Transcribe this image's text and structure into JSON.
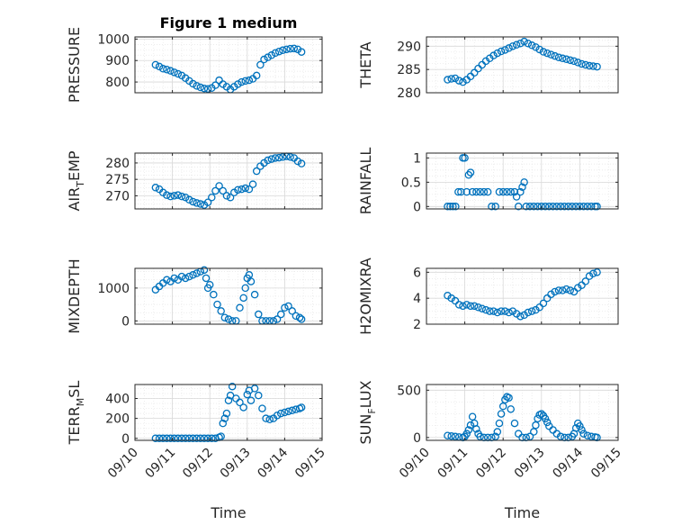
{
  "colors": {
    "marker": "#0072BD",
    "axis": "#262626",
    "grid": "#d9d9d9"
  },
  "chart_data": [
    {
      "id": "pressure",
      "type": "scatter",
      "title": "Figure 1 medium",
      "ylabel": "PRESSURE",
      "xlim": [
        0,
        5
      ],
      "ylim": [
        750,
        1010
      ],
      "yticks": [
        800,
        900,
        1000
      ],
      "ytick_labels": [
        "800",
        "900",
        "1000"
      ],
      "x": [
        0.55,
        0.65,
        0.75,
        0.85,
        0.95,
        1.05,
        1.15,
        1.25,
        1.35,
        1.45,
        1.55,
        1.65,
        1.75,
        1.85,
        1.95,
        2.05,
        2.15,
        2.25,
        2.35,
        2.45,
        2.55,
        2.65,
        2.75,
        2.85,
        2.95,
        3.05,
        3.15,
        3.25,
        3.35,
        3.45,
        3.55,
        3.65,
        3.75,
        3.85,
        3.95,
        4.05,
        4.15,
        4.25,
        4.35,
        4.45
      ],
      "y": [
        880,
        872,
        862,
        858,
        852,
        845,
        838,
        830,
        818,
        805,
        792,
        782,
        775,
        770,
        768,
        772,
        785,
        808,
        790,
        778,
        765,
        778,
        790,
        800,
        805,
        808,
        815,
        830,
        880,
        905,
        915,
        925,
        935,
        942,
        948,
        952,
        955,
        956,
        952,
        940
      ]
    },
    {
      "id": "theta",
      "type": "scatter",
      "ylabel": "THETA",
      "xlim": [
        0,
        5
      ],
      "ylim": [
        280,
        292
      ],
      "yticks": [
        280,
        285,
        290
      ],
      "ytick_labels": [
        "280",
        "285",
        "290"
      ],
      "x": [
        0.55,
        0.65,
        0.75,
        0.85,
        0.95,
        1.05,
        1.15,
        1.25,
        1.35,
        1.45,
        1.55,
        1.65,
        1.75,
        1.85,
        1.95,
        2.05,
        2.15,
        2.25,
        2.35,
        2.45,
        2.55,
        2.65,
        2.75,
        2.85,
        2.95,
        3.05,
        3.15,
        3.25,
        3.35,
        3.45,
        3.55,
        3.65,
        3.75,
        3.85,
        3.95,
        4.05,
        4.15,
        4.25,
        4.35,
        4.45
      ],
      "y": [
        282.8,
        283.0,
        283.1,
        282.6,
        282.3,
        282.8,
        283.5,
        284.3,
        285.2,
        286.0,
        286.8,
        287.4,
        288.0,
        288.5,
        288.9,
        289.2,
        289.6,
        290.0,
        290.3,
        290.6,
        291.0,
        290.6,
        290.2,
        289.8,
        289.3,
        288.8,
        288.5,
        288.2,
        287.9,
        287.6,
        287.4,
        287.2,
        287.0,
        286.8,
        286.5,
        286.2,
        286.0,
        285.8,
        285.7,
        285.6
      ]
    },
    {
      "id": "airtemp",
      "type": "scatter",
      "ylabel": "AIR_TEMP",
      "ylabel_main": "AIR",
      "ylabel_sub": "T",
      "ylabel_rest": "EMP",
      "xlim": [
        0,
        5
      ],
      "ylim": [
        266,
        283
      ],
      "yticks": [
        270,
        275,
        280
      ],
      "ytick_labels": [
        "270",
        "275",
        "280"
      ],
      "x": [
        0.55,
        0.65,
        0.75,
        0.85,
        0.95,
        1.05,
        1.15,
        1.25,
        1.35,
        1.45,
        1.55,
        1.65,
        1.75,
        1.85,
        1.95,
        2.05,
        2.15,
        2.25,
        2.35,
        2.45,
        2.55,
        2.65,
        2.75,
        2.85,
        2.95,
        3.05,
        3.15,
        3.25,
        3.35,
        3.45,
        3.55,
        3.65,
        3.75,
        3.85,
        3.95,
        4.05,
        4.15,
        4.25,
        4.35,
        4.45
      ],
      "y": [
        272.5,
        272.0,
        271.0,
        270.2,
        269.8,
        270.0,
        270.2,
        269.8,
        269.5,
        268.8,
        268.2,
        267.8,
        267.5,
        267.2,
        268.0,
        269.5,
        271.5,
        273.0,
        271.5,
        270.0,
        269.5,
        271.0,
        271.8,
        272.0,
        272.3,
        272.0,
        273.5,
        277.5,
        279.0,
        280.0,
        280.8,
        281.2,
        281.5,
        281.6,
        281.8,
        282.0,
        281.8,
        281.5,
        280.5,
        279.8
      ]
    },
    {
      "id": "rainfall",
      "type": "scatter",
      "ylabel": "RAINFALL",
      "xlim": [
        0,
        5
      ],
      "ylim": [
        -0.05,
        1.1
      ],
      "yticks": [
        0,
        0.5,
        1
      ],
      "ytick_labels": [
        "0",
        "0.5",
        "1"
      ],
      "x": [
        0.55,
        0.62,
        0.69,
        0.76,
        0.83,
        0.9,
        0.95,
        1.0,
        1.05,
        1.1,
        1.15,
        1.2,
        1.3,
        1.4,
        1.5,
        1.6,
        1.7,
        1.8,
        1.9,
        2.0,
        2.1,
        2.2,
        2.3,
        2.35,
        2.4,
        2.45,
        2.5,
        2.55,
        2.6,
        2.7,
        2.8,
        2.9,
        3.0,
        3.1,
        3.2,
        3.3,
        3.4,
        3.5,
        3.6,
        3.7,
        3.8,
        3.9,
        4.0,
        4.1,
        4.2,
        4.3,
        4.4,
        4.45
      ],
      "y": [
        0,
        0,
        0,
        0,
        0.3,
        0.3,
        1.0,
        1.0,
        0.3,
        0.65,
        0.7,
        0.3,
        0.3,
        0.3,
        0.3,
        0.3,
        0,
        0,
        0.3,
        0.3,
        0.3,
        0.3,
        0.3,
        0.2,
        0,
        0.3,
        0.4,
        0.5,
        0,
        0,
        0,
        0,
        0,
        0,
        0,
        0,
        0,
        0,
        0,
        0,
        0,
        0,
        0,
        0,
        0,
        0,
        0,
        0
      ]
    },
    {
      "id": "mixdepth",
      "type": "scatter",
      "ylabel": "MIXDEPTH",
      "xlim": [
        0,
        5
      ],
      "ylim": [
        -100,
        1600
      ],
      "yticks": [
        0,
        1000
      ],
      "ytick_labels": [
        "0",
        "1000"
      ],
      "x": [
        0.55,
        0.65,
        0.75,
        0.85,
        0.95,
        1.05,
        1.15,
        1.25,
        1.35,
        1.45,
        1.55,
        1.65,
        1.75,
        1.85,
        1.9,
        1.95,
        2.0,
        2.1,
        2.2,
        2.3,
        2.4,
        2.5,
        2.6,
        2.7,
        2.8,
        2.9,
        2.95,
        3.0,
        3.05,
        3.1,
        3.2,
        3.3,
        3.4,
        3.5,
        3.6,
        3.7,
        3.8,
        3.9,
        4.0,
        4.1,
        4.2,
        4.3,
        4.4,
        4.45
      ],
      "y": [
        950,
        1050,
        1150,
        1250,
        1200,
        1300,
        1250,
        1350,
        1300,
        1350,
        1400,
        1450,
        1500,
        1550,
        1300,
        1000,
        1100,
        800,
        500,
        300,
        100,
        50,
        0,
        0,
        400,
        700,
        1000,
        1300,
        1400,
        1200,
        800,
        200,
        0,
        0,
        0,
        0,
        50,
        200,
        400,
        450,
        300,
        150,
        100,
        50
      ]
    },
    {
      "id": "h2omixra",
      "type": "scatter",
      "ylabel": "H2OMIXRA",
      "xlim": [
        0,
        5
      ],
      "ylim": [
        2,
        6.3
      ],
      "yticks": [
        2,
        4,
        6
      ],
      "ytick_labels": [
        "2",
        "4",
        "6"
      ],
      "x": [
        0.55,
        0.65,
        0.75,
        0.85,
        0.95,
        1.05,
        1.15,
        1.25,
        1.35,
        1.45,
        1.55,
        1.65,
        1.75,
        1.85,
        1.95,
        2.05,
        2.15,
        2.25,
        2.35,
        2.45,
        2.55,
        2.65,
        2.75,
        2.85,
        2.95,
        3.05,
        3.15,
        3.25,
        3.35,
        3.45,
        3.55,
        3.65,
        3.75,
        3.85,
        3.95,
        4.05,
        4.15,
        4.25,
        4.35,
        4.45
      ],
      "y": [
        4.2,
        4.0,
        3.8,
        3.5,
        3.4,
        3.5,
        3.4,
        3.4,
        3.3,
        3.2,
        3.1,
        3.0,
        3.0,
        2.9,
        3.0,
        3.0,
        2.9,
        3.0,
        2.8,
        2.6,
        2.7,
        2.9,
        3.0,
        3.1,
        3.3,
        3.6,
        4.0,
        4.3,
        4.5,
        4.6,
        4.6,
        4.7,
        4.6,
        4.5,
        4.8,
        5.0,
        5.3,
        5.7,
        5.9,
        6.0
      ]
    },
    {
      "id": "terrmsl",
      "type": "scatter",
      "ylabel": "TERR_MSL",
      "ylabel_main": "TERR",
      "ylabel_sub": "M",
      "ylabel_rest": "SL",
      "xlim": [
        0,
        5
      ],
      "ylim": [
        -20,
        540
      ],
      "yticks": [
        0,
        200,
        400
      ],
      "ytick_labels": [
        "0",
        "200",
        "400"
      ],
      "x": [
        0.55,
        0.65,
        0.75,
        0.85,
        0.95,
        1.05,
        1.15,
        1.25,
        1.35,
        1.45,
        1.55,
        1.65,
        1.75,
        1.85,
        1.95,
        2.05,
        2.15,
        2.25,
        2.3,
        2.35,
        2.4,
        2.45,
        2.5,
        2.55,
        2.6,
        2.7,
        2.8,
        2.9,
        3.0,
        3.05,
        3.1,
        3.2,
        3.3,
        3.4,
        3.5,
        3.6,
        3.7,
        3.8,
        3.9,
        4.0,
        4.1,
        4.2,
        4.3,
        4.4,
        4.45
      ],
      "y": [
        0,
        0,
        0,
        0,
        0,
        0,
        0,
        0,
        0,
        0,
        0,
        0,
        0,
        0,
        0,
        0,
        0,
        10,
        20,
        150,
        200,
        250,
        380,
        430,
        520,
        400,
        360,
        310,
        440,
        480,
        380,
        500,
        430,
        300,
        200,
        190,
        200,
        230,
        250,
        260,
        270,
        280,
        290,
        300,
        310
      ]
    },
    {
      "id": "sunflux",
      "type": "scatter",
      "ylabel": "SUN_FLUX",
      "ylabel_main": "SUN",
      "ylabel_sub": "F",
      "ylabel_rest": "LUX",
      "xlim": [
        0,
        5
      ],
      "ylim": [
        -30,
        560
      ],
      "yticks": [
        0,
        500
      ],
      "ytick_labels": [
        "0",
        "500"
      ],
      "x": [
        0.55,
        0.65,
        0.75,
        0.85,
        0.95,
        1.0,
        1.05,
        1.1,
        1.15,
        1.2,
        1.25,
        1.3,
        1.35,
        1.4,
        1.5,
        1.6,
        1.7,
        1.8,
        1.85,
        1.9,
        1.95,
        2.0,
        2.05,
        2.1,
        2.15,
        2.2,
        2.3,
        2.4,
        2.5,
        2.6,
        2.7,
        2.8,
        2.85,
        2.9,
        2.95,
        3.0,
        3.05,
        3.1,
        3.15,
        3.2,
        3.3,
        3.4,
        3.5,
        3.6,
        3.7,
        3.8,
        3.85,
        3.9,
        3.95,
        4.0,
        4.05,
        4.1,
        4.2,
        4.3,
        4.4,
        4.45
      ],
      "y": [
        20,
        15,
        10,
        5,
        0,
        10,
        40,
        80,
        130,
        220,
        150,
        90,
        40,
        10,
        0,
        0,
        0,
        10,
        60,
        150,
        250,
        330,
        400,
        430,
        420,
        300,
        150,
        40,
        0,
        0,
        10,
        60,
        130,
        200,
        240,
        250,
        230,
        200,
        160,
        120,
        80,
        40,
        10,
        0,
        0,
        10,
        40,
        100,
        150,
        120,
        80,
        40,
        20,
        10,
        5,
        0
      ]
    }
  ],
  "x_axis": {
    "tick_labels": [
      "09/10",
      "09/11",
      "09/12",
      "09/13",
      "09/14",
      "09/15"
    ],
    "xlabel": "Time"
  }
}
